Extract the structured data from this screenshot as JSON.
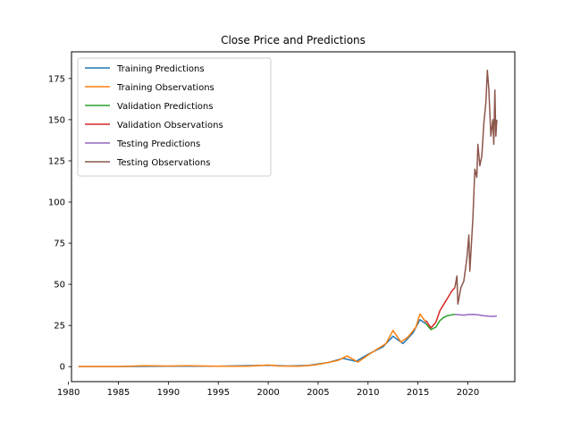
{
  "chart_data": {
    "type": "line",
    "title": "Close Price and Predictions",
    "xlabel": "",
    "ylabel": "",
    "xlim": [
      1980.3,
      2024.7
    ],
    "ylim": [
      -9.1,
      191.2
    ],
    "x_ticks": [
      1980,
      1985,
      1990,
      1995,
      2000,
      2005,
      2010,
      2015,
      2020
    ],
    "y_ticks": [
      0,
      25,
      50,
      75,
      100,
      125,
      150,
      175
    ],
    "grid": false,
    "legend": "top-left",
    "series": [
      {
        "name": "Training Predictions",
        "color": "#1f77b4",
        "points": [
          [
            1981.0,
            0.1
          ],
          [
            1985,
            0.1
          ],
          [
            1990,
            0.3
          ],
          [
            1995,
            0.3
          ],
          [
            2000,
            0.8
          ],
          [
            2002,
            0.4
          ],
          [
            2004,
            0.7
          ],
          [
            2006,
            2.5
          ],
          [
            2007.5,
            5.0
          ],
          [
            2008.8,
            3.2
          ],
          [
            2010,
            7.5
          ],
          [
            2011.5,
            12.0
          ],
          [
            2012.5,
            18.5
          ],
          [
            2013.5,
            14.0
          ],
          [
            2014.5,
            20.5
          ],
          [
            2015.2,
            28.5
          ],
          [
            2015.8,
            26.0
          ]
        ]
      },
      {
        "name": "Training Observations",
        "color": "#ff7f0e",
        "points": [
          [
            1981.0,
            0.1
          ],
          [
            1985,
            0.1
          ],
          [
            1987.5,
            0.5
          ],
          [
            1990,
            0.4
          ],
          [
            1992,
            0.5
          ],
          [
            1995,
            0.3
          ],
          [
            1998,
            0.3
          ],
          [
            2000,
            1.0
          ],
          [
            2001,
            0.4
          ],
          [
            2003,
            0.3
          ],
          [
            2004,
            0.6
          ],
          [
            2005,
            1.4
          ],
          [
            2006,
            2.5
          ],
          [
            2007,
            3.8
          ],
          [
            2007.9,
            6.5
          ],
          [
            2009,
            2.8
          ],
          [
            2010,
            7.0
          ],
          [
            2011,
            11.0
          ],
          [
            2011.8,
            14.0
          ],
          [
            2012.5,
            22.0
          ],
          [
            2013.3,
            15.0
          ],
          [
            2014,
            18.0
          ],
          [
            2014.8,
            24.0
          ],
          [
            2015.2,
            32.0
          ],
          [
            2015.8,
            27.0
          ]
        ]
      },
      {
        "name": "Validation Predictions",
        "color": "#2ca02c",
        "points": [
          [
            2015.8,
            26.0
          ],
          [
            2016.3,
            22.5
          ],
          [
            2016.8,
            24.0
          ],
          [
            2017.2,
            28.0
          ],
          [
            2017.6,
            30.0
          ],
          [
            2018.0,
            31.0
          ],
          [
            2018.4,
            31.5
          ],
          [
            2018.7,
            31.8
          ]
        ]
      },
      {
        "name": "Validation Observations",
        "color": "#d62728",
        "points": [
          [
            2015.8,
            28.0
          ],
          [
            2016.3,
            23.5
          ],
          [
            2016.8,
            27.0
          ],
          [
            2017.2,
            34.0
          ],
          [
            2017.6,
            38.0
          ],
          [
            2018.0,
            42.0
          ],
          [
            2018.4,
            46.0
          ],
          [
            2018.7,
            48.0
          ]
        ]
      },
      {
        "name": "Testing Predictions",
        "color": "#9467bd",
        "points": [
          [
            2018.7,
            31.8
          ],
          [
            2019.2,
            31.5
          ],
          [
            2019.6,
            31.3
          ],
          [
            2020.0,
            31.6
          ],
          [
            2020.5,
            31.8
          ],
          [
            2021.0,
            31.5
          ],
          [
            2021.5,
            31.0
          ],
          [
            2022.0,
            30.7
          ],
          [
            2022.5,
            30.5
          ],
          [
            2022.9,
            30.8
          ]
        ]
      },
      {
        "name": "Testing Observations",
        "color": "#8c564b",
        "points": [
          [
            2018.7,
            48.0
          ],
          [
            2018.9,
            55.0
          ],
          [
            2019.0,
            38.0
          ],
          [
            2019.3,
            48.0
          ],
          [
            2019.6,
            52.0
          ],
          [
            2019.9,
            66.0
          ],
          [
            2020.1,
            80.0
          ],
          [
            2020.2,
            58.0
          ],
          [
            2020.5,
            90.0
          ],
          [
            2020.7,
            120.0
          ],
          [
            2020.9,
            115.0
          ],
          [
            2021.0,
            135.0
          ],
          [
            2021.2,
            122.0
          ],
          [
            2021.4,
            128.0
          ],
          [
            2021.6,
            148.0
          ],
          [
            2021.8,
            160.0
          ],
          [
            2021.95,
            180.0
          ],
          [
            2022.1,
            168.0
          ],
          [
            2022.3,
            140.0
          ],
          [
            2022.5,
            150.0
          ],
          [
            2022.6,
            135.0
          ],
          [
            2022.7,
            168.0
          ],
          [
            2022.8,
            140.0
          ],
          [
            2022.9,
            150.0
          ]
        ]
      }
    ]
  }
}
